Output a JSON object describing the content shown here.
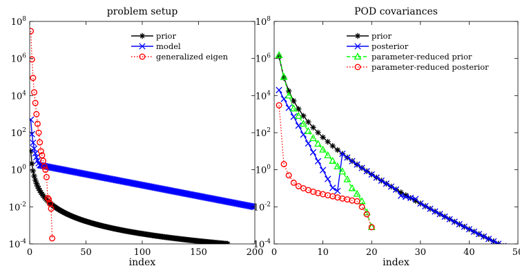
{
  "chart_data": [
    {
      "type": "line",
      "title": "problem setup",
      "xlabel": "index",
      "ylabel": "",
      "yscale": "log",
      "xlim": [
        0,
        200
      ],
      "ylim_exp": [
        -4,
        8
      ],
      "xticks": [
        "0",
        "50",
        "100",
        "150",
        "200"
      ],
      "ytick_base": "10",
      "ytick_exps": [
        "-4",
        "-2",
        "0",
        "2",
        "4",
        "6",
        "8"
      ],
      "legend_position": "top-right",
      "series": [
        {
          "name": "prior",
          "color": "#000000",
          "marker": "asterisk",
          "line": "solid",
          "n": 176,
          "curve": "prior1"
        },
        {
          "name": "model",
          "color": "#0000ff",
          "marker": "x",
          "line": "solid",
          "n": 200,
          "curve": "model1"
        },
        {
          "name": "generalized eigen",
          "color": "#ff0000",
          "marker": "circle",
          "line": "dotted",
          "x": [
            1,
            2,
            3,
            4,
            5,
            6,
            7,
            8,
            9,
            10,
            11,
            12,
            13,
            14,
            15,
            16,
            17,
            18,
            19,
            20
          ],
          "y": [
            30000000,
            900000,
            90000,
            15000,
            4000,
            1000,
            300,
            100,
            30,
            10,
            6,
            3,
            1.5,
            1,
            0.4,
            0.03,
            0.025,
            0.015,
            0.008,
            0.0002
          ]
        }
      ]
    },
    {
      "type": "line",
      "title": "POD covariances",
      "xlabel": "index",
      "ylabel": "",
      "yscale": "log",
      "xlim": [
        0,
        50
      ],
      "ylim_exp": [
        -4,
        8
      ],
      "xticks": [
        "0",
        "10",
        "20",
        "30",
        "40",
        "50"
      ],
      "ytick_base": "10",
      "ytick_exps": [
        "-4",
        "-2",
        "0",
        "2",
        "4",
        "6",
        "8"
      ],
      "legend_position": "top-right",
      "series": [
        {
          "name": "prior",
          "color": "#000000",
          "marker": "asterisk",
          "line": "solid",
          "n": 50,
          "curve": "prior2"
        },
        {
          "name": "posterior",
          "color": "#0000ff",
          "marker": "x",
          "line": "solid",
          "n": 50,
          "curve": "post2"
        },
        {
          "name": "parameter-reduced prior",
          "color": "#00ff00",
          "marker": "triangle",
          "line": "dashed",
          "x": [
            1,
            2,
            3,
            4,
            5,
            6,
            7,
            8,
            9,
            10,
            11,
            12,
            13,
            14,
            15,
            16,
            17,
            18,
            19,
            20
          ],
          "y": [
            1500000,
            100000,
            10000,
            2000,
            800,
            300,
            120,
            50,
            25,
            12,
            6,
            3,
            1.5,
            0.8,
            0.3,
            0.1,
            0.05,
            0.02,
            0.005,
            0.0008
          ]
        },
        {
          "name": "parameter-reduced posterior",
          "color": "#ff0000",
          "marker": "circle",
          "line": "dotted",
          "x": [
            1,
            2,
            3,
            4,
            5,
            6,
            7,
            8,
            9,
            10,
            11,
            12,
            13,
            14,
            15,
            16,
            17,
            18,
            19,
            20
          ],
          "y": [
            3000,
            2,
            0.5,
            0.2,
            0.13,
            0.1,
            0.08,
            0.065,
            0.055,
            0.048,
            0.042,
            0.037,
            0.032,
            0.028,
            0.025,
            0.022,
            0.02,
            0.01,
            0.004,
            0.0008
          ]
        }
      ]
    }
  ]
}
